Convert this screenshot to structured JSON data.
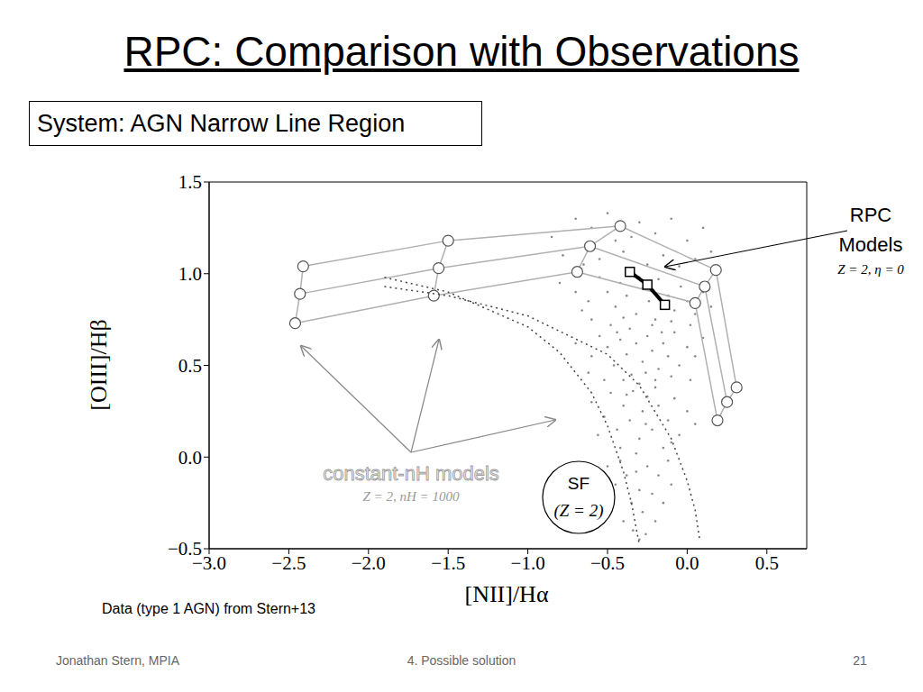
{
  "title": "RPC: Comparison with Observations",
  "system_box": "System: AGN Narrow Line Region",
  "chart_data": {
    "type": "scatter",
    "x_label": "[NII]/Hα",
    "y_label": "[OIII]/Hβ",
    "xlim": [
      -3.0,
      0.75
    ],
    "ylim": [
      -0.5,
      1.5
    ],
    "xticks": [
      {
        "value": -3.0,
        "label": "−3.0"
      },
      {
        "value": -2.5,
        "label": "−2.5"
      },
      {
        "value": -2.0,
        "label": "−2.0"
      },
      {
        "value": -1.5,
        "label": "−1.5"
      },
      {
        "value": -1.0,
        "label": "−1.0"
      },
      {
        "value": -0.5,
        "label": "−0.5"
      },
      {
        "value": 0.0,
        "label": "0.0"
      },
      0.5
    ],
    "yticks": [
      {
        "value": -0.5,
        "label": "−0.5"
      },
      {
        "value": 0.0,
        "label": "0.0"
      },
      0.5,
      {
        "value": 1.0,
        "label": "1.0"
      },
      1.5
    ],
    "series": [
      {
        "type": "scatter",
        "color": "#8a8a8a",
        "marker": "dot",
        "x": [
          -0.85,
          -0.7,
          -0.6,
          -0.5,
          -0.45,
          -0.3,
          -0.2,
          -0.1,
          0.0,
          0.1,
          -0.78,
          -0.55,
          -0.4,
          -0.25,
          -0.15,
          -0.05,
          0.05,
          0.15,
          -0.65,
          -0.35,
          -0.8,
          -0.7,
          -0.62,
          -0.55,
          -0.5,
          -0.45,
          -0.42,
          -0.38,
          -0.32,
          -0.28,
          -0.24,
          -0.2,
          -0.18,
          -0.12,
          -0.08,
          -0.04,
          0.0,
          0.05,
          0.1,
          0.15,
          -0.6,
          -0.48,
          -0.36,
          -0.3,
          -0.22,
          -0.1,
          0.02,
          -0.66,
          -0.4,
          -0.14,
          -0.7,
          -0.6,
          -0.55,
          -0.5,
          -0.46,
          -0.42,
          -0.38,
          -0.35,
          -0.32,
          -0.28,
          -0.25,
          -0.22,
          -0.18,
          -0.15,
          -0.12,
          -0.08,
          -0.05,
          0.0,
          0.05,
          0.1,
          -0.52,
          -0.4,
          -0.3,
          -0.2,
          -0.1,
          -0.62,
          -0.44,
          -0.26,
          -0.16,
          0.02,
          -0.6,
          -0.52,
          -0.48,
          -0.44,
          -0.4,
          -0.36,
          -0.34,
          -0.3,
          -0.28,
          -0.25,
          -0.22,
          -0.18,
          -0.15,
          -0.12,
          -0.08,
          -0.05,
          0.0,
          -0.42,
          -0.32,
          -0.2,
          -0.56,
          -0.38,
          -0.26,
          -0.1,
          0.05,
          -0.5,
          -0.45,
          -0.42,
          -0.38,
          -0.35,
          -0.32,
          -0.3,
          -0.28,
          -0.25,
          -0.22,
          -0.2,
          -0.18,
          -0.15,
          -0.12,
          -0.4,
          -0.34,
          -0.26,
          -0.1,
          -0.48,
          -0.3
        ],
        "values": [
          1.2,
          1.3,
          1.25,
          1.33,
          1.18,
          1.28,
          1.22,
          1.3,
          1.18,
          1.25,
          1.1,
          1.08,
          1.12,
          1.05,
          1.1,
          1.04,
          1.08,
          1.12,
          1.05,
          1.2,
          0.95,
          0.9,
          0.85,
          0.98,
          0.9,
          0.82,
          0.95,
          0.88,
          0.78,
          0.92,
          0.85,
          0.75,
          0.97,
          0.88,
          0.8,
          0.93,
          0.85,
          0.78,
          0.9,
          0.82,
          0.75,
          0.72,
          0.7,
          0.98,
          0.72,
          0.74,
          0.72,
          0.8,
          0.76,
          0.82,
          0.62,
          0.55,
          0.66,
          0.6,
          0.5,
          0.64,
          0.56,
          0.45,
          0.62,
          0.52,
          0.66,
          0.58,
          0.48,
          0.62,
          0.55,
          0.68,
          0.5,
          0.6,
          0.55,
          0.65,
          0.42,
          0.42,
          0.4,
          0.42,
          0.44,
          0.46,
          0.68,
          0.46,
          0.68,
          0.42,
          0.3,
          0.22,
          0.35,
          0.15,
          0.28,
          0.2,
          0.36,
          0.1,
          0.25,
          0.33,
          0.15,
          0.28,
          0.05,
          0.2,
          0.32,
          0.12,
          0.25,
          0.05,
          0.02,
          0.38,
          0.12,
          0.34,
          0.18,
          0.08,
          0.18,
          -0.05,
          -0.15,
          -0.02,
          -0.1,
          -0.25,
          -0.08,
          -0.18,
          -0.3,
          -0.05,
          -0.2,
          -0.35,
          -0.1,
          -0.25,
          -0.02,
          -0.35,
          -0.4,
          -0.42,
          -0.15,
          -0.28,
          -0.45
        ]
      },
      {
        "type": "line",
        "color": "#444444",
        "marker": "none",
        "line_style": "dotted",
        "x": [
          -1.9,
          -1.5,
          -1.0,
          -0.8,
          -0.6,
          -0.5,
          -0.4,
          -0.35,
          -0.3
        ],
        "values": [
          0.98,
          0.9,
          0.71,
          0.57,
          0.35,
          0.17,
          -0.08,
          -0.25,
          -0.48
        ]
      },
      {
        "type": "line",
        "color": "#444444",
        "marker": "none",
        "line_style": "dotted",
        "x": [
          -1.9,
          -1.5,
          -1.0,
          -0.5,
          -0.3,
          -0.1,
          0.0,
          0.05,
          0.08
        ],
        "values": [
          0.93,
          0.88,
          0.77,
          0.56,
          0.39,
          0.1,
          -0.13,
          -0.29,
          -0.46
        ]
      },
      {
        "type": "line",
        "color": "#000000",
        "marker": "square",
        "line_style": "solid",
        "x": [
          -0.36,
          -0.25,
          -0.14
        ],
        "values": [
          1.01,
          0.94,
          0.83
        ]
      }
    ],
    "model_grid": {
      "color": "#b0b0b0",
      "marker": "circle",
      "rows": [
        {
          "x": [
            -2.41,
            -1.5,
            -0.42,
            0.18,
            0.31
          ],
          "values": [
            1.04,
            1.18,
            1.26,
            1.02,
            0.38
          ]
        },
        {
          "x": [
            -2.43,
            -1.56,
            -0.61,
            0.11,
            0.25
          ],
          "values": [
            0.89,
            1.03,
            1.15,
            0.93,
            0.3
          ]
        },
        {
          "x": [
            -2.46,
            -1.59,
            -0.69,
            0.05,
            0.19
          ],
          "values": [
            0.73,
            0.88,
            1.01,
            0.84,
            0.2
          ]
        }
      ]
    },
    "annotations": {
      "rpc_label": "RPC Models",
      "rpc_params": "Z = 2, η = 0",
      "models_label": "constant-nH models",
      "models_params": "Z = 2, nH = 1000",
      "sf_label": "SF",
      "sf_params": "(Z = 2)"
    }
  },
  "data_source": "Data (type 1 AGN) from Stern+13",
  "footer": {
    "left": "Jonathan Stern, MPIA",
    "center": "4. Possible solution",
    "right": "21"
  }
}
